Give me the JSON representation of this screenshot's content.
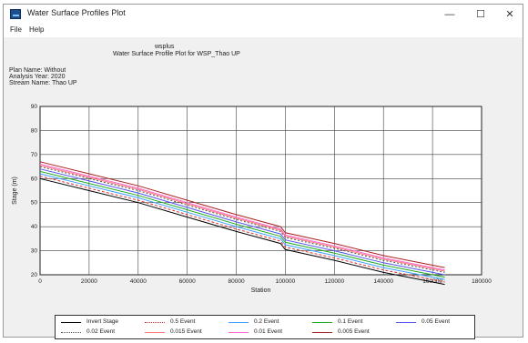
{
  "window": {
    "title": "Water Surface Profiles Plot",
    "minimize_glyph": "—",
    "maximize_glyph": "☐",
    "close_glyph": "✕"
  },
  "menu": {
    "items": [
      "File",
      "Help"
    ]
  },
  "header": {
    "line1": "wsplus",
    "line2": "Water Surface Profile Plot for WSP_Thao UP"
  },
  "info": {
    "plan": "Plan Name: Without",
    "year": "Analysis Year: 2020",
    "stream": "Stream Name: Thao UP"
  },
  "chart_data": {
    "type": "line",
    "xlabel": "Station",
    "ylabel": "Stage (m)",
    "xlim": [
      0,
      180000
    ],
    "ylim": [
      20,
      90
    ],
    "xticks": [
      0,
      20000,
      40000,
      60000,
      80000,
      100000,
      120000,
      140000,
      160000,
      180000
    ],
    "yticks": [
      20,
      30,
      40,
      50,
      60,
      70,
      80,
      90
    ],
    "grid": true,
    "legend_position": "bottom",
    "x": [
      0,
      20000,
      40000,
      60000,
      80000,
      98000,
      100000,
      120000,
      140000,
      165000
    ],
    "series": [
      {
        "name": "Invert Stage",
        "color": "#000000",
        "dash": "",
        "values": [
          60,
          55,
          50,
          44,
          38,
          33,
          30.5,
          26,
          21,
          16
        ]
      },
      {
        "name": "0.5 Event",
        "color": "#e03030",
        "dash": "3,2",
        "values": [
          61,
          56,
          51,
          45,
          39,
          34,
          31.5,
          27,
          22,
          17
        ]
      },
      {
        "name": "0.2 Event",
        "color": "#3aa0ff",
        "dash": "",
        "values": [
          62,
          57,
          52,
          46,
          40,
          35,
          32.5,
          28,
          23,
          18
        ]
      },
      {
        "name": "0.1 Event",
        "color": "#22aa22",
        "dash": "",
        "values": [
          63,
          58,
          53,
          47,
          41,
          36,
          33.5,
          29,
          24,
          19
        ]
      },
      {
        "name": "0.05 Event",
        "color": "#5555ee",
        "dash": "",
        "values": [
          64,
          59,
          54,
          48,
          42,
          37,
          34.5,
          30,
          25,
          20
        ]
      },
      {
        "name": "0.02 Event",
        "color": "#555555",
        "dash": "2,2",
        "values": [
          65,
          60,
          55,
          49,
          43,
          38,
          35.5,
          31,
          26,
          21
        ]
      },
      {
        "name": "0.015 Event",
        "color": "#ff7777",
        "dash": "",
        "values": [
          65.5,
          60.5,
          55.5,
          49.5,
          43.5,
          38.5,
          36,
          31.5,
          26.5,
          21.5
        ]
      },
      {
        "name": "0.01 Event",
        "color": "#ff66cc",
        "dash": "",
        "values": [
          66,
          61,
          56,
          50,
          44,
          39,
          36.5,
          32,
          27,
          22
        ]
      },
      {
        "name": "0.005 Event",
        "color": "#aa2222",
        "dash": "",
        "values": [
          67,
          62,
          57,
          51,
          45,
          40,
          37.5,
          33,
          28,
          23
        ]
      }
    ]
  },
  "colors": {
    "window_bg": "#f0f0f0",
    "plot_bg": "#ffffff",
    "grid": "#404040"
  }
}
